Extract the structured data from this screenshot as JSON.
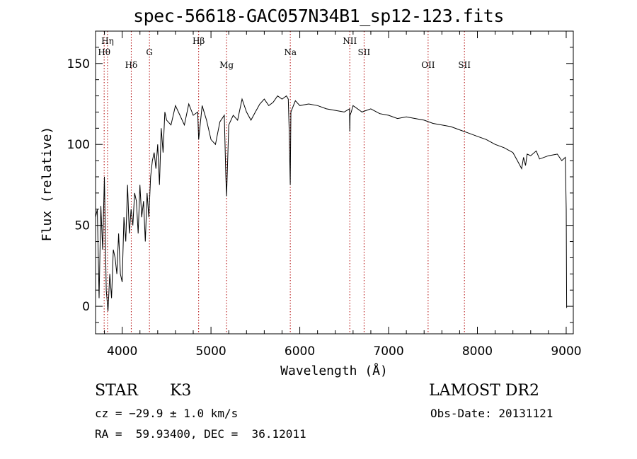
{
  "title": "spec-56618-GAC057N34B1_sp12-123.fits",
  "info": {
    "class": "STAR",
    "subclass": "K3",
    "survey": "LAMOST DR2",
    "cz": "cz = −29.9 ± 1.0 km/s",
    "obs_date": "Obs-Date: 20131121",
    "radec": "RA =  59.93400, DEC =  36.12011"
  },
  "colors": {
    "line": "#000000",
    "marker": "#b00000"
  },
  "chart_data": {
    "type": "line",
    "xlabel": "Wavelength (Å)",
    "ylabel": "Flux (relative)",
    "xlim": [
      3700,
      9080
    ],
    "ylim": [
      -17,
      170
    ],
    "xticks": [
      4000,
      5000,
      6000,
      7000,
      8000,
      9000
    ],
    "yticks": [
      0,
      50,
      100,
      150
    ],
    "grid": false,
    "series": [
      {
        "x": [
          3700,
          3720,
          3740,
          3760,
          3780,
          3800,
          3820,
          3840,
          3860,
          3880,
          3900,
          3920,
          3940,
          3960,
          3980,
          4000,
          4020,
          4040,
          4060,
          4080,
          4100,
          4120,
          4140,
          4160,
          4180,
          4200,
          4220,
          4240,
          4260,
          4280,
          4300,
          4320,
          4340,
          4360,
          4380,
          4400,
          4420,
          4440,
          4460,
          4480,
          4500,
          4550,
          4600,
          4650,
          4700,
          4750,
          4800,
          4850,
          4861,
          4900,
          4950,
          5000,
          5050,
          5100,
          5150,
          5167,
          5175,
          5183,
          5200,
          5250,
          5300,
          5350,
          5400,
          5450,
          5500,
          5550,
          5600,
          5650,
          5700,
          5750,
          5800,
          5850,
          5870,
          5880,
          5893,
          5900,
          5950,
          6000,
          6100,
          6200,
          6300,
          6400,
          6500,
          6560,
          6563,
          6566,
          6580,
          6600,
          6700,
          6800,
          6900,
          7000,
          7100,
          7200,
          7300,
          7400,
          7500,
          7600,
          7700,
          7800,
          7900,
          8000,
          8100,
          8200,
          8300,
          8400,
          8450,
          8498,
          8520,
          8542,
          8560,
          8600,
          8662,
          8700,
          8800,
          8900,
          8950,
          8990,
          9000,
          9005
        ],
        "y": [
          55,
          60,
          5,
          62,
          35,
          80,
          10,
          -3,
          20,
          5,
          35,
          30,
          20,
          45,
          20,
          15,
          55,
          40,
          75,
          45,
          60,
          50,
          70,
          65,
          45,
          75,
          55,
          65,
          40,
          70,
          55,
          80,
          90,
          95,
          85,
          100,
          75,
          110,
          95,
          120,
          115,
          112,
          124,
          118,
          112,
          125,
          118,
          120,
          103,
          124,
          115,
          103,
          100,
          114,
          118,
          80,
          68,
          82,
          112,
          118,
          115,
          128,
          120,
          115,
          120,
          125,
          128,
          124,
          126,
          130,
          128,
          130,
          128,
          110,
          75,
          120,
          127,
          124,
          125,
          124,
          122,
          121,
          120,
          122,
          108,
          118,
          120,
          124,
          120,
          122,
          119,
          118,
          116,
          117,
          116,
          115,
          113,
          112,
          111,
          109,
          107,
          105,
          103,
          100,
          98,
          95,
          90,
          85,
          92,
          87,
          94,
          93,
          96,
          91,
          93,
          94,
          90,
          92,
          60,
          -1
        ]
      }
    ],
    "annotations": [
      {
        "label": "Hη",
        "x": 3835,
        "row": 0
      },
      {
        "label": "Hθ",
        "x": 3797,
        "row": 1
      },
      {
        "label": "Hδ",
        "x": 4102,
        "row": 2
      },
      {
        "label": "G",
        "x": 4307,
        "row": 1
      },
      {
        "label": "Hβ",
        "x": 4861,
        "row": 0
      },
      {
        "label": "Mg",
        "x": 5175,
        "row": 2
      },
      {
        "label": "Na",
        "x": 5893,
        "row": 1
      },
      {
        "label": "NII",
        "x": 6563,
        "row": 0
      },
      {
        "label": "SII",
        "x": 6724,
        "row": 1
      },
      {
        "label": "OII",
        "x": 7445,
        "row": 2
      },
      {
        "label": "SII",
        "x": 7854,
        "row": 2
      }
    ]
  }
}
